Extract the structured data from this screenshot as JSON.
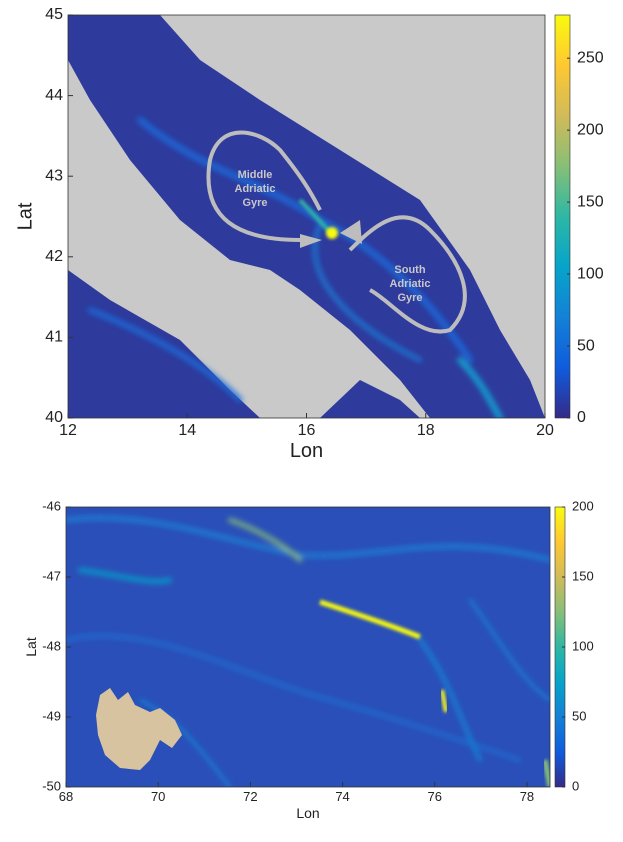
{
  "chart_data": [
    {
      "type": "heatmap",
      "xlim": [
        12,
        20
      ],
      "ylim": [
        40,
        45
      ],
      "xticks": [
        12,
        14,
        16,
        18,
        20
      ],
      "yticks": [
        40,
        41,
        42,
        43,
        44,
        45
      ],
      "x_label": "Lon",
      "y_label": "Lat",
      "colorbar": {
        "lim": [
          0,
          280
        ],
        "ticks": [
          0,
          50,
          100,
          150,
          200,
          250
        ]
      },
      "colormap": [
        "#352a87",
        "#0f5cdd",
        "#1481d6",
        "#06a4ca",
        "#2eb7a4",
        "#87bf77",
        "#d1bb59",
        "#fec832",
        "#f9fb0e"
      ],
      "annotations": [
        [
          "Middle",
          "Adriatic",
          "Gyre"
        ],
        [
          "South",
          "Adriatic",
          "Gyre"
        ]
      ]
    },
    {
      "type": "heatmap",
      "xlim": [
        68,
        78.5
      ],
      "ylim": [
        -50,
        -46
      ],
      "xticks": [
        68,
        70,
        72,
        74,
        76,
        78
      ],
      "yticks": [
        -50,
        -49,
        -48,
        -47,
        -46
      ],
      "x_label": "Lon",
      "y_label": "Lat",
      "colorbar": {
        "lim": [
          0,
          200
        ],
        "ticks": [
          0,
          50,
          100,
          150,
          200
        ]
      },
      "colormap": [
        "#352a87",
        "#0f5cdd",
        "#1481d6",
        "#06a4ca",
        "#2eb7a4",
        "#87bf77",
        "#d1bb59",
        "#fec832",
        "#f9fb0e"
      ]
    }
  ]
}
